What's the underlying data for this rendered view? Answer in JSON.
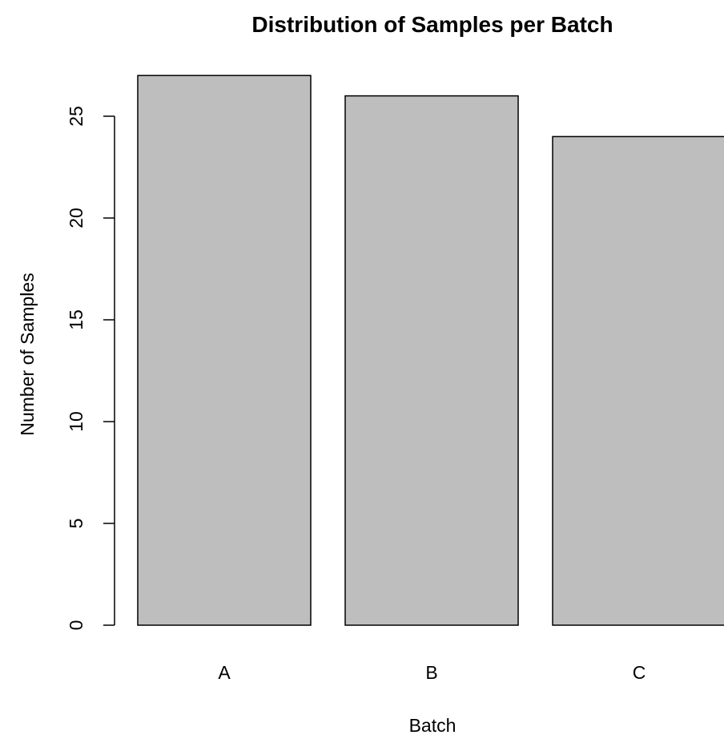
{
  "chart_data": {
    "type": "bar",
    "title": "Distribution of Samples per Batch",
    "xlabel": "Batch",
    "ylabel": "Number of Samples",
    "categories": [
      "A",
      "B",
      "C"
    ],
    "values": [
      27,
      26,
      24
    ],
    "ylim": [
      0,
      27
    ],
    "yticks": [
      0,
      5,
      10,
      15,
      20,
      25
    ],
    "grid": false,
    "colors": {
      "bar_fill": "#bebebe",
      "bar_stroke": "#000000"
    }
  }
}
